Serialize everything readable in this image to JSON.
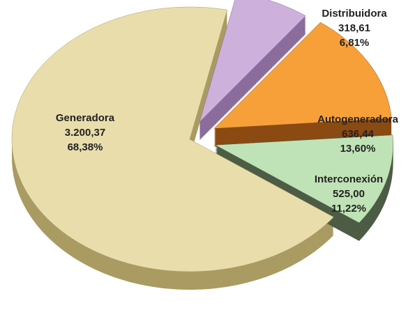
{
  "chart_data": {
    "type": "pie",
    "categories": [
      "Generadora",
      "Distribuidora",
      "Autogeneradora",
      "Interconexión"
    ],
    "values": [
      3200.37,
      318.61,
      636.44,
      525.0
    ],
    "value_labels": [
      "3.200,37",
      "318,61",
      "636,44",
      "525,00"
    ],
    "percentages": [
      68.38,
      6.81,
      13.6,
      11.22
    ],
    "percent_labels": [
      "68,38%",
      "6,81%",
      "13,60%",
      "11,22%"
    ],
    "colors": [
      "#e9ddac",
      "#cdb0dc",
      "#f7a03a",
      "#bfe3b6"
    ],
    "side_colors": [
      "#a99b62",
      "#8c6c9c",
      "#8a4a12",
      "#4d5c45"
    ]
  }
}
